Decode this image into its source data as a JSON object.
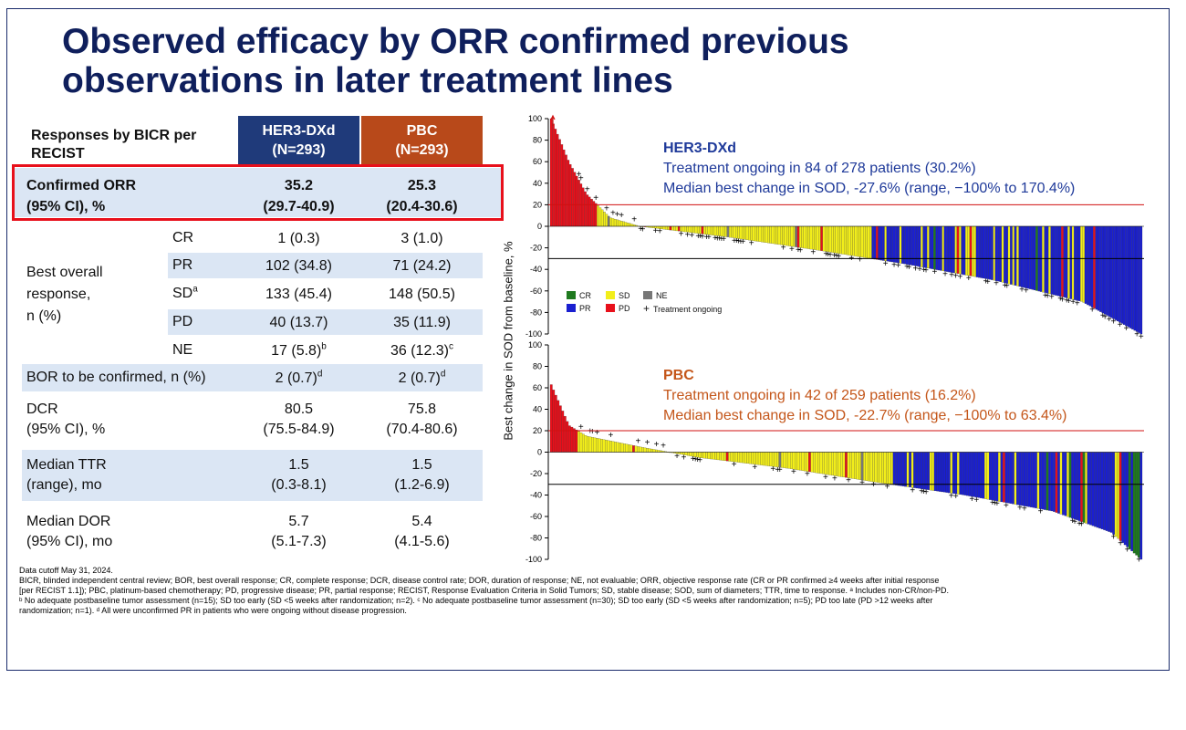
{
  "title": {
    "line1": "Observed efficacy by ORR confirmed previous",
    "line2": "observations in later treatment lines"
  },
  "table": {
    "header_label": "Responses by BICR per RECIST",
    "col1": {
      "name": "HER3-DXd",
      "n": "(N=293)",
      "color": "#1f3a7a"
    },
    "col2": {
      "name": "PBC",
      "n": "(N=293)",
      "color": "#b8491a"
    },
    "orr": {
      "label1": "Confirmed ORR",
      "label2": "(95% CI), %",
      "v1": "35.2",
      "ci1": "(29.7-40.9)",
      "v2": "25.3",
      "ci2": "(20.4-30.6)"
    },
    "bor": {
      "label1": "Best overall",
      "label2": "response,",
      "label3": "n (%)",
      "rows": [
        {
          "sub": "CR",
          "v1": "1 (0.3)",
          "v2": "3 (1.0)",
          "sup1": "",
          "sup2": ""
        },
        {
          "sub": "PR",
          "v1": "102 (34.8)",
          "v2": "71 (24.2)",
          "sup1": "",
          "sup2": ""
        },
        {
          "sub": "SD",
          "subsup": "a",
          "v1": "133 (45.4)",
          "v2": "148 (50.5)",
          "sup1": "",
          "sup2": ""
        },
        {
          "sub": "PD",
          "v1": "40 (13.7)",
          "v2": "35 (11.9)",
          "sup1": "",
          "sup2": ""
        },
        {
          "sub": "NE",
          "v1": "17 (5.8)",
          "v2": "36 (12.3)",
          "sup1": "b",
          "sup2": "c"
        }
      ]
    },
    "bor_tbc": {
      "label": "BOR to be confirmed, n (%)",
      "v1": "2 (0.7)",
      "v2": "2 (0.7)",
      "sup": "d"
    },
    "dcr": {
      "label1": "DCR",
      "label2": "(95% CI), %",
      "v1": "80.5",
      "ci1": "(75.5-84.9)",
      "v2": "75.8",
      "ci2": "(70.4-80.6)"
    },
    "ttr": {
      "label1": "Median TTR",
      "label2": "(range), mo",
      "v1": "1.5",
      "ci1": "(0.3-8.1)",
      "v2": "1.5",
      "ci2": "(1.2-6.9)"
    },
    "dor": {
      "label1": "Median DOR",
      "label2": "(95% CI), mo",
      "v1": "5.7",
      "ci1": "(5.1-7.3)",
      "v2": "5.4",
      "ci2": "(4.1-5.6)"
    }
  },
  "footnotes": [
    "Data cutoff May 31, 2024.",
    "BICR, blinded independent central review; BOR, best overall response; CR, complete response; DCR, disease control rate; DOR, duration of response; NE, not evaluable; ORR, objective response rate (CR or PR confirmed ≥4 weeks after initial response",
    "[per RECIST 1.1]); PBC, platinum-based chemotherapy; PD, progressive disease; PR, partial response; RECIST, Response Evaluation Criteria in Solid Tumors; SD, stable disease; SOD, sum of diameters; TTR, time to response. ᵃ Includes non-CR/non-PD.",
    "ᵇ No adequate postbaseline tumor assessment (n=15); SD too early (SD <5 weeks after randomization; n=2). ᶜ No adequate postbaseline tumor assessment (n=30); SD too early (SD <5 weeks after randomization; n=5); PD too late (PD >12 weeks after",
    "randomization; n=1). ᵈ All were unconfirmed PR in patients who were ongoing without disease progression."
  ],
  "annotations": {
    "her": {
      "title": "HER3-DXd",
      "line1": "Treatment ongoing in 84 of 278 patients (30.2%)",
      "line2": "Median best change in SOD, -27.6% (range, −100% to 170.4%)",
      "color": "#1f3a9a"
    },
    "pbc": {
      "title": "PBC",
      "line1": "Treatment ongoing in 42 of 259 patients (16.2%)",
      "line2": "Median best change in SOD, -22.7% (range, −100% to 63.4%)",
      "color": "#c4561a"
    }
  },
  "legend": {
    "items": [
      {
        "label": "CR",
        "color": "#1f7a1f"
      },
      {
        "label": "SD",
        "color": "#f2ee1a"
      },
      {
        "label": "NE",
        "color": "#777777"
      },
      {
        "label": "PR",
        "color": "#1a1fd0"
      },
      {
        "label": "PD",
        "color": "#e8101b"
      },
      {
        "label": "Treatment ongoing",
        "marker": "+"
      }
    ]
  },
  "chart_data": [
    {
      "type": "bar",
      "subtype": "waterfall",
      "title": "HER3-DXd",
      "ylabel": "Best change in SOD from baseline, %",
      "ylim": [
        -100,
        100
      ],
      "yticks": [
        100,
        80,
        60,
        40,
        20,
        0,
        -20,
        -40,
        -60,
        -80,
        -100
      ],
      "reference_lines": [
        20,
        -30
      ],
      "n_patients": 278,
      "truncated_values_note": "bars exceeding 100 are truncated with arrow",
      "values_summary": {
        "max": 170.4,
        "min": -100,
        "median": -27.6
      },
      "bar_profile": [
        {
          "rank_fraction": 0.0,
          "value": 100,
          "category": "PD"
        },
        {
          "rank_fraction": 0.03,
          "value": 60,
          "category": "PD"
        },
        {
          "rank_fraction": 0.06,
          "value": 30,
          "category": "PD"
        },
        {
          "rank_fraction": 0.1,
          "value": 8,
          "category": "SD"
        },
        {
          "rank_fraction": 0.15,
          "value": 0,
          "category": "SD"
        },
        {
          "rank_fraction": 0.3,
          "value": -10,
          "category": "SD"
        },
        {
          "rank_fraction": 0.45,
          "value": -22,
          "category": "SD"
        },
        {
          "rank_fraction": 0.6,
          "value": -35,
          "category": "PR"
        },
        {
          "rank_fraction": 0.75,
          "value": -50,
          "category": "PR"
        },
        {
          "rank_fraction": 0.9,
          "value": -70,
          "category": "PR"
        },
        {
          "rank_fraction": 1.0,
          "value": -100,
          "category": "PR"
        }
      ]
    },
    {
      "type": "bar",
      "subtype": "waterfall",
      "title": "PBC",
      "ylabel": "Best change in SOD from baseline, %",
      "ylim": [
        -100,
        100
      ],
      "yticks": [
        100,
        80,
        60,
        40,
        20,
        0,
        -20,
        -40,
        -60,
        -80,
        -100
      ],
      "reference_lines": [
        20,
        -30
      ],
      "n_patients": 259,
      "values_summary": {
        "max": 63.4,
        "min": -100,
        "median": -22.7
      },
      "bar_profile": [
        {
          "rank_fraction": 0.0,
          "value": 63,
          "category": "PD"
        },
        {
          "rank_fraction": 0.03,
          "value": 25,
          "category": "PD"
        },
        {
          "rank_fraction": 0.06,
          "value": 15,
          "category": "SD"
        },
        {
          "rank_fraction": 0.15,
          "value": 5,
          "category": "SD"
        },
        {
          "rank_fraction": 0.25,
          "value": -5,
          "category": "SD"
        },
        {
          "rank_fraction": 0.4,
          "value": -15,
          "category": "SD"
        },
        {
          "rank_fraction": 0.55,
          "value": -28,
          "category": "SD"
        },
        {
          "rank_fraction": 0.7,
          "value": -40,
          "category": "PR"
        },
        {
          "rank_fraction": 0.85,
          "value": -55,
          "category": "PR"
        },
        {
          "rank_fraction": 0.95,
          "value": -75,
          "category": "PR"
        },
        {
          "rank_fraction": 1.0,
          "value": -100,
          "category": "PR"
        }
      ]
    }
  ]
}
